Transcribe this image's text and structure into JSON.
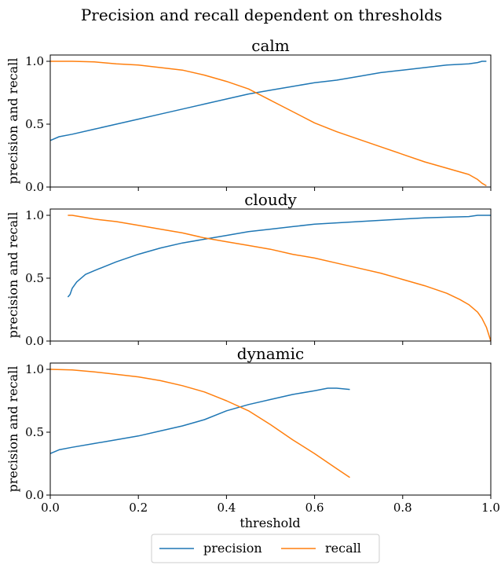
{
  "chart_data": {
    "type": "line",
    "suptitle": "Precision and recall dependent on thresholds",
    "xlabel": "threshold",
    "ylabel": "precision and recall",
    "xlim": [
      0.0,
      1.0
    ],
    "ylim": [
      0.0,
      1.05
    ],
    "xticks": [
      "0.0",
      "0.2",
      "0.4",
      "0.6",
      "0.8",
      "1.0"
    ],
    "yticks": [
      "0.0",
      "0.5",
      "1.0"
    ],
    "legend": {
      "position": "bottom-center",
      "entries": [
        "precision",
        "recall"
      ]
    },
    "colors": {
      "precision": "#1f77b4",
      "recall": "#ff7f0e"
    },
    "panels": [
      {
        "title": "calm",
        "series": [
          {
            "name": "precision",
            "x": [
              0.0,
              0.02,
              0.05,
              0.1,
              0.15,
              0.2,
              0.25,
              0.3,
              0.35,
              0.4,
              0.45,
              0.5,
              0.55,
              0.6,
              0.65,
              0.7,
              0.75,
              0.8,
              0.85,
              0.9,
              0.95,
              0.97,
              0.98,
              0.99
            ],
            "y": [
              0.37,
              0.4,
              0.42,
              0.46,
              0.5,
              0.54,
              0.58,
              0.62,
              0.66,
              0.7,
              0.74,
              0.77,
              0.8,
              0.83,
              0.85,
              0.88,
              0.91,
              0.93,
              0.95,
              0.97,
              0.98,
              0.99,
              1.0,
              1.0
            ]
          },
          {
            "name": "recall",
            "x": [
              0.0,
              0.05,
              0.1,
              0.15,
              0.2,
              0.25,
              0.3,
              0.35,
              0.4,
              0.45,
              0.5,
              0.55,
              0.6,
              0.65,
              0.7,
              0.75,
              0.8,
              0.85,
              0.9,
              0.95,
              0.97,
              0.98,
              0.99
            ],
            "y": [
              1.0,
              1.0,
              0.995,
              0.98,
              0.97,
              0.95,
              0.93,
              0.89,
              0.84,
              0.78,
              0.69,
              0.6,
              0.51,
              0.44,
              0.38,
              0.32,
              0.26,
              0.2,
              0.15,
              0.1,
              0.06,
              0.03,
              0.01
            ]
          }
        ]
      },
      {
        "title": "cloudy",
        "series": [
          {
            "name": "precision",
            "x": [
              0.04,
              0.045,
              0.05,
              0.06,
              0.08,
              0.1,
              0.15,
              0.2,
              0.25,
              0.3,
              0.35,
              0.4,
              0.45,
              0.5,
              0.55,
              0.6,
              0.65,
              0.7,
              0.75,
              0.8,
              0.85,
              0.9,
              0.95,
              0.97,
              1.0
            ],
            "y": [
              0.35,
              0.37,
              0.42,
              0.47,
              0.53,
              0.56,
              0.63,
              0.69,
              0.74,
              0.78,
              0.81,
              0.84,
              0.87,
              0.89,
              0.91,
              0.93,
              0.94,
              0.95,
              0.96,
              0.97,
              0.98,
              0.985,
              0.99,
              1.0,
              1.0
            ]
          },
          {
            "name": "recall",
            "x": [
              0.04,
              0.05,
              0.1,
              0.15,
              0.2,
              0.25,
              0.3,
              0.35,
              0.4,
              0.45,
              0.5,
              0.55,
              0.6,
              0.65,
              0.7,
              0.75,
              0.8,
              0.85,
              0.9,
              0.93,
              0.95,
              0.97,
              0.98,
              0.99,
              1.0
            ],
            "y": [
              1.0,
              1.0,
              0.97,
              0.95,
              0.92,
              0.89,
              0.86,
              0.82,
              0.79,
              0.76,
              0.73,
              0.69,
              0.66,
              0.62,
              0.58,
              0.54,
              0.49,
              0.44,
              0.38,
              0.33,
              0.29,
              0.23,
              0.18,
              0.11,
              0.0
            ]
          }
        ]
      },
      {
        "title": "dynamic",
        "series": [
          {
            "name": "precision",
            "x": [
              0.0,
              0.02,
              0.05,
              0.1,
              0.15,
              0.2,
              0.25,
              0.3,
              0.35,
              0.4,
              0.45,
              0.5,
              0.55,
              0.6,
              0.63,
              0.65,
              0.68
            ],
            "y": [
              0.33,
              0.36,
              0.38,
              0.41,
              0.44,
              0.47,
              0.51,
              0.55,
              0.6,
              0.67,
              0.72,
              0.76,
              0.8,
              0.83,
              0.85,
              0.85,
              0.84
            ]
          },
          {
            "name": "recall",
            "x": [
              0.0,
              0.05,
              0.1,
              0.15,
              0.2,
              0.25,
              0.3,
              0.35,
              0.4,
              0.45,
              0.5,
              0.55,
              0.6,
              0.65,
              0.68
            ],
            "y": [
              1.0,
              0.995,
              0.98,
              0.96,
              0.94,
              0.91,
              0.87,
              0.82,
              0.75,
              0.67,
              0.56,
              0.44,
              0.33,
              0.21,
              0.14
            ]
          }
        ]
      }
    ]
  }
}
